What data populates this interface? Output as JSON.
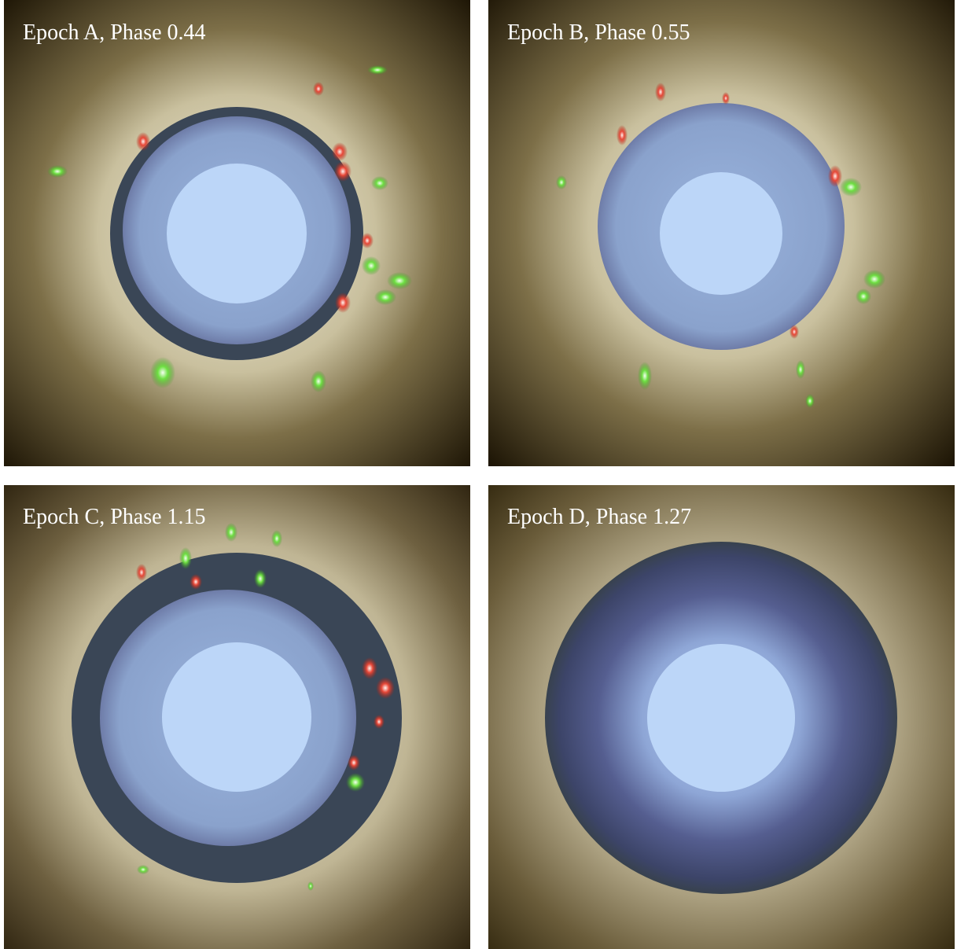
{
  "panels": [
    {
      "label": "Epoch A, Phase 0.44"
    },
    {
      "label": "Epoch B, Phase 0.55"
    },
    {
      "label": "Epoch C, Phase 1.15"
    },
    {
      "label": "Epoch D, Phase 1.27"
    }
  ]
}
